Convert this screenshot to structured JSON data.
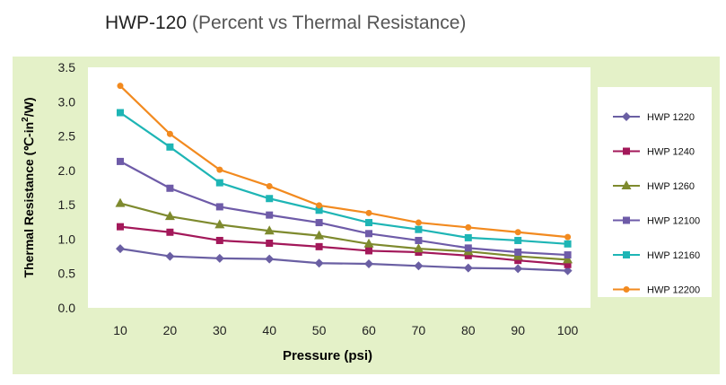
{
  "title": {
    "main": "HWP-120",
    "sub": "(Percent vs Thermal Resistance)"
  },
  "chart_data": {
    "type": "line",
    "title": "HWP-120 (Percent vs Thermal Resistance)",
    "xlabel": "Pressure (psi)",
    "ylabel": "Thermal Resistance (℃-in²/W)",
    "ylabel_main": "Thermal Resistance (℃-in",
    "ylabel_sup": "2",
    "ylabel_tail": "/W)",
    "x": [
      10,
      20,
      30,
      40,
      50,
      60,
      70,
      80,
      90,
      100
    ],
    "x_tick_labels": [
      "10",
      "20",
      "30",
      "40",
      "50",
      "60",
      "70",
      "80",
      "90",
      "100"
    ],
    "ylim": [
      0,
      3.5
    ],
    "y_ticks": [
      0,
      0.5,
      1.0,
      1.5,
      2.0,
      2.5,
      3.0,
      3.5
    ],
    "y_tick_labels": [
      "0.0",
      "0.5",
      "1.0",
      "1.5",
      "2.0",
      "2.5",
      "3.0",
      "3.5"
    ],
    "grid": false,
    "legend_position": "right",
    "series": [
      {
        "name": "HWP 1220",
        "color": "#6a5fa3",
        "marker": "diamond",
        "values": [
          0.86,
          0.75,
          0.72,
          0.71,
          0.65,
          0.64,
          0.61,
          0.58,
          0.57,
          0.54
        ]
      },
      {
        "name": "HWP 1240",
        "color": "#a3185a",
        "marker": "square",
        "values": [
          1.18,
          1.1,
          0.98,
          0.94,
          0.89,
          0.83,
          0.81,
          0.76,
          0.69,
          0.63
        ]
      },
      {
        "name": "HWP 1260",
        "color": "#7e8a2e",
        "marker": "triangle",
        "values": [
          1.52,
          1.33,
          1.21,
          1.12,
          1.05,
          0.93,
          0.86,
          0.82,
          0.75,
          0.7
        ]
      },
      {
        "name": "HWP 12100",
        "color": "#6e5ba8",
        "marker": "square",
        "values": [
          2.13,
          1.74,
          1.47,
          1.35,
          1.24,
          1.08,
          0.98,
          0.87,
          0.81,
          0.77
        ]
      },
      {
        "name": "HWP 12160",
        "color": "#1eb5b5",
        "marker": "square",
        "values": [
          2.84,
          2.34,
          1.82,
          1.59,
          1.42,
          1.24,
          1.14,
          1.02,
          0.98,
          0.93
        ]
      },
      {
        "name": "HWP 12200",
        "color": "#f28a1f",
        "marker": "circle",
        "values": [
          3.23,
          2.53,
          2.01,
          1.77,
          1.49,
          1.38,
          1.24,
          1.17,
          1.1,
          1.03
        ]
      }
    ]
  }
}
